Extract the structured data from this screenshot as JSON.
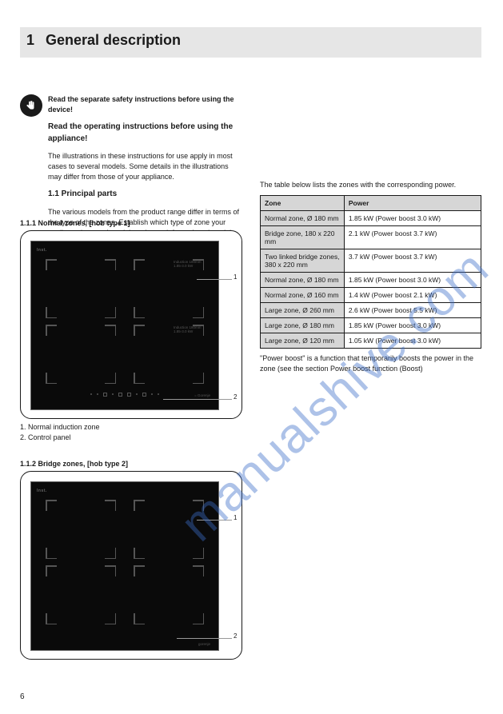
{
  "header": {
    "num": "1",
    "title": "General description"
  },
  "intro": {
    "p1": "Read the separate safety instructions before using the device!",
    "h1": "Read the operating instructions before using the appliance!",
    "p2": "The illustrations in these instructions for use apply in most cases to several models. Some details in the illustrations may differ from those of your appliance.",
    "h2": "1.1 Principal parts",
    "p3": "The various models from the product range differ in terms of the type of the zones. Establish which type of zone your appliance has, and read the relevant information about it in these instructions."
  },
  "fig1": {
    "label": "1.1.1 Normal zones, [hob type 1]",
    "callout1": "1",
    "callout2": "2",
    "brand": "= Gorenje",
    "zone_txt_tr": "Induction 180mm\\n1.85-3.0 kW",
    "zone_txt_br": "Induction 180mm\\n1.85-3.0 kW"
  },
  "left_bottom": {
    "p1": "1. Normal induction zone",
    "p2": "2. Control panel"
  },
  "fig2": {
    "label": "1.1.2 Bridge zones, [hob type 2]",
    "callout1": "1",
    "callout2": "2",
    "brand": "gorenje"
  },
  "right": {
    "top": "The table below lists the zones with the corresponding power.",
    "table": {
      "head1": "Zone",
      "head2": "Power",
      "rows": [
        [
          "Normal zone,   Ø 180 mm",
          "1.85 kW (Power boost 3.0 kW)"
        ],
        [
          "Bridge zone,    180 x 220 mm",
          "2.1 kW (Power boost 3.7 kW)"
        ],
        [
          "Two linked bridge zones,\\n380 x 220 mm",
          "3.7 kW (Power boost 3.7 kW)"
        ],
        [
          "Normal zone,   Ø 180 mm",
          "1.85 kW (Power boost 3.0 kW)"
        ],
        [
          "Normal zone,   Ø 160 mm",
          "1.4 kW (Power boost 2.1 kW)"
        ],
        [
          "Large zone,     Ø 260 mm",
          "2.6 kW (Power boost 5.5 kW)"
        ],
        [
          "Large zone,     Ø 180 mm",
          "1.85 kW (Power boost 3.0 kW)"
        ],
        [
          "Large zone,     Ø 120 mm",
          "1.05 kW (Power boost 3.0 kW)"
        ]
      ]
    },
    "bottom": "\"Power boost\" is a function that temporarily boosts the power in the zone (see the section Power boost function (Boost)"
  },
  "page_num": "6",
  "watermark": "manualshive.com",
  "colors": {
    "header_bg": "#e6e6e6",
    "table_shade": "#d6d6d6",
    "text": "#1a1a1a",
    "hob_bg": "#0a0a0a",
    "zone_line": "#555555",
    "wm": "rgba(60,110,200,0.42)"
  }
}
